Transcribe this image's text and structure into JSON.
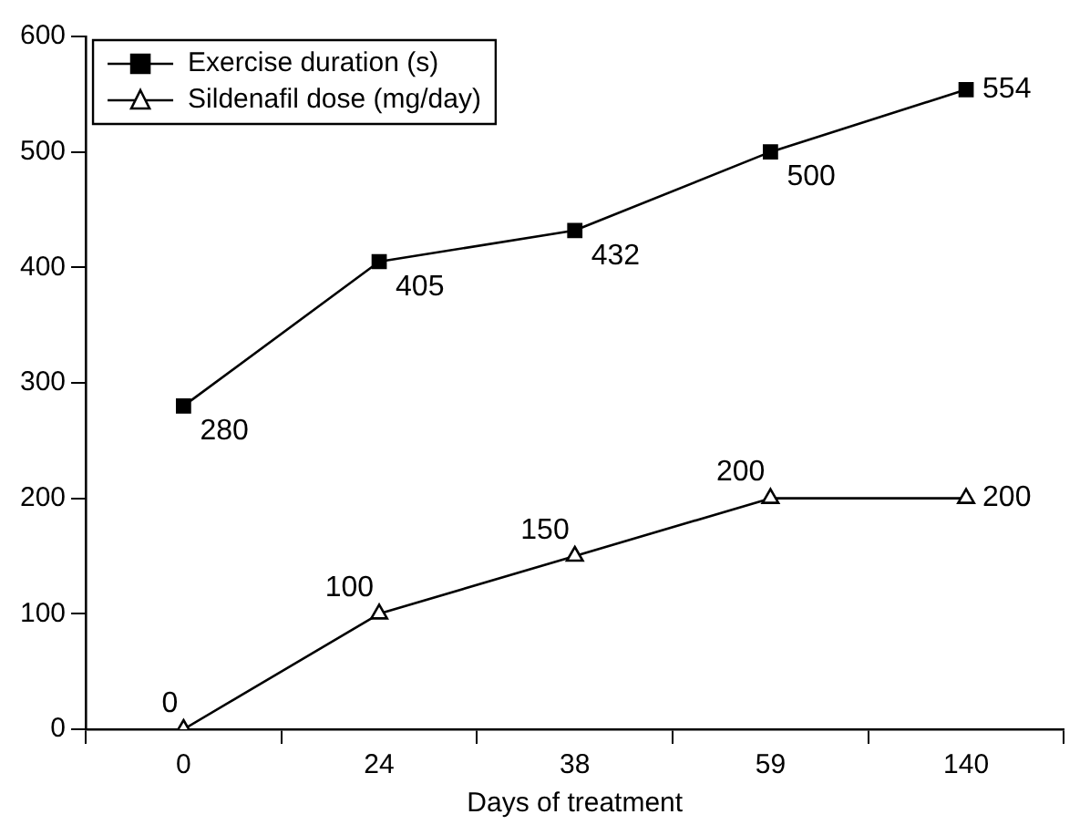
{
  "chart_data": {
    "type": "line",
    "xlabel": "Days of treatment",
    "categories": [
      "0",
      "24",
      "38",
      "59",
      "140"
    ],
    "series": [
      {
        "name": "Exercise duration (s)",
        "color": "#000000",
        "marker": "square",
        "values": [
          280,
          405,
          432,
          500,
          554
        ]
      },
      {
        "name": "Sildenafil dose (mg/day)",
        "color": "#000000",
        "marker": "triangle",
        "values": [
          0,
          100,
          150,
          200,
          200
        ]
      }
    ],
    "ylim": [
      0,
      600
    ],
    "yticks": [
      0,
      100,
      200,
      300,
      400,
      500,
      600
    ],
    "grid": false,
    "legend": "top left",
    "data_labels": true,
    "line_style": "solid"
  }
}
